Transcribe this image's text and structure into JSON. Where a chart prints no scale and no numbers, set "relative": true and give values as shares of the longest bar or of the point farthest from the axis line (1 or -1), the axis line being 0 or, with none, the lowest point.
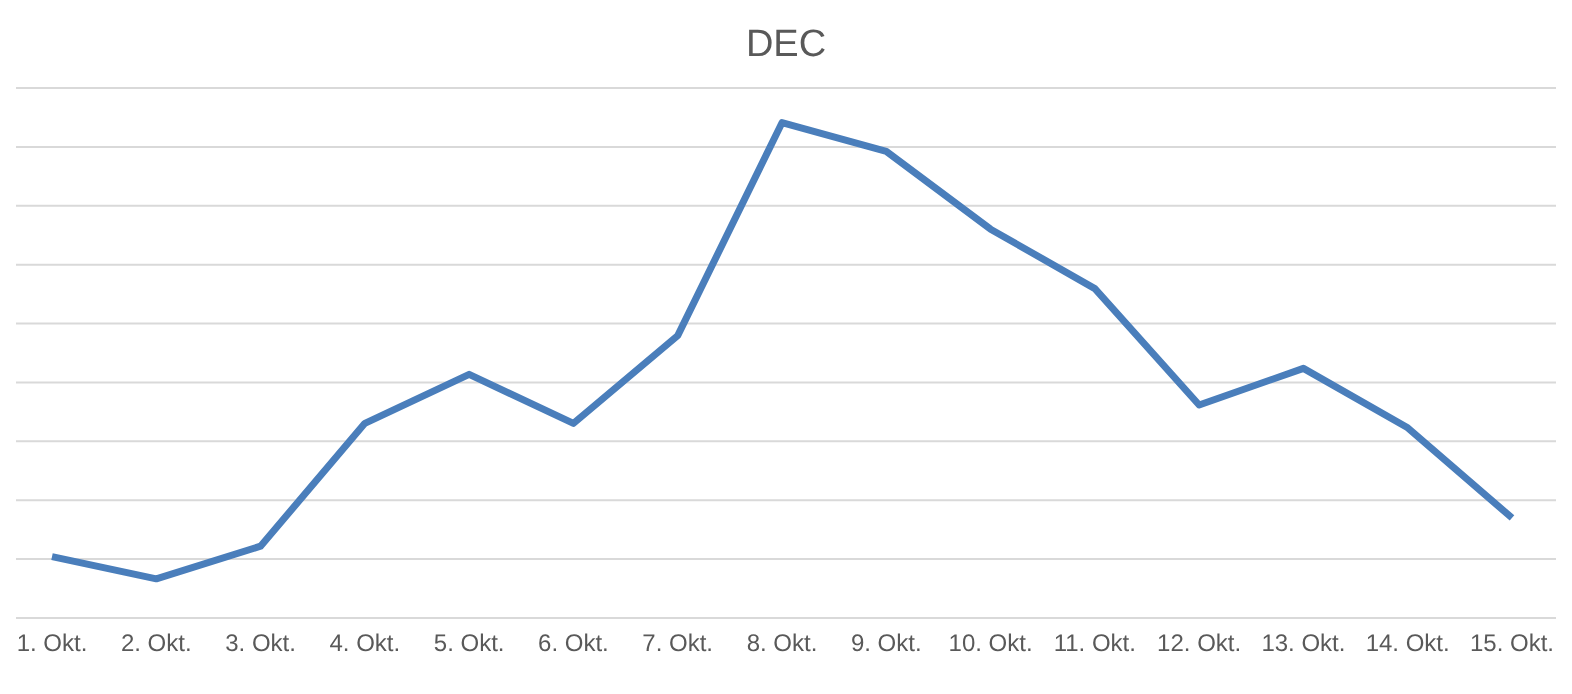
{
  "chart_data": {
    "type": "line",
    "title": "DEC",
    "relative": true,
    "categories": [
      "1. Okt.",
      "2. Okt.",
      "3. Okt.",
      "4. Okt.",
      "5. Okt.",
      "6. Okt.",
      "7. Okt.",
      "8. Okt.",
      "9. Okt.",
      "10. Okt.",
      "11. Okt.",
      "12. Okt.",
      "13. Okt.",
      "14. Okt.",
      "15. Okt."
    ],
    "series": [
      {
        "color": "#4a7ebb",
        "values": [
          0.124,
          0.079,
          0.145,
          0.393,
          0.492,
          0.393,
          0.57,
          1,
          0.942,
          0.785,
          0.665,
          0.43,
          0.504,
          0.384,
          0.202
        ]
      }
    ],
    "grid": "y",
    "marker": "none",
    "line_style": "solid",
    "legend": false
  }
}
